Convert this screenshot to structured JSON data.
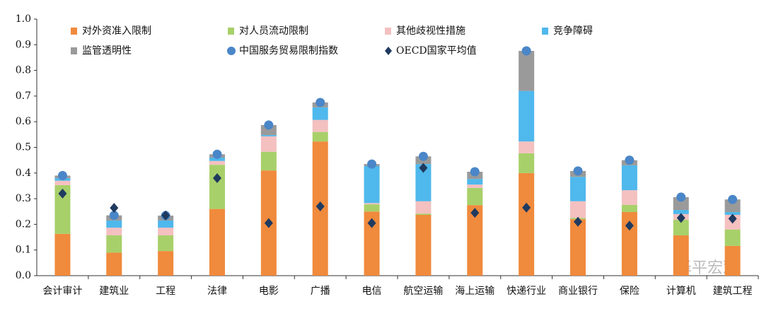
{
  "chart_data": {
    "type": "stacked_bar",
    "categories": [
      "会计审计",
      "建筑业",
      "工程",
      "法律",
      "电影",
      "广播",
      "电信",
      "航空运输",
      "海上运输",
      "快递行业",
      "商业银行",
      "保险",
      "计算机",
      "建筑工程"
    ],
    "series": [
      {
        "name": "对外资准入限制",
        "color": "#f08a3c",
        "values": [
          0.163,
          0.09,
          0.096,
          0.26,
          0.41,
          0.523,
          0.25,
          0.237,
          0.275,
          0.4,
          0.22,
          0.248,
          0.157,
          0.116
        ]
      },
      {
        "name": "对人员流动限制",
        "color": "#a8d06a",
        "values": [
          0.19,
          0.067,
          0.061,
          0.172,
          0.073,
          0.037,
          0.028,
          0.005,
          0.067,
          0.077,
          0.005,
          0.028,
          0.061,
          0.064
        ]
      },
      {
        "name": "其他歧视性措施",
        "color": "#f4c0c0",
        "values": [
          0.017,
          0.03,
          0.03,
          0.015,
          0.06,
          0.047,
          0.005,
          0.048,
          0.013,
          0.046,
          0.065,
          0.057,
          0.022,
          0.057
        ]
      },
      {
        "name": "竞争障碍",
        "color": "#4fb8ec",
        "values": [
          0.01,
          0.028,
          0.028,
          0.013,
          0.005,
          0.049,
          0.144,
          0.145,
          0.022,
          0.197,
          0.095,
          0.097,
          0.016,
          0.011
        ]
      },
      {
        "name": "监管透明性",
        "color": "#9a9a9a",
        "values": [
          0.01,
          0.02,
          0.019,
          0.013,
          0.039,
          0.019,
          0.008,
          0.03,
          0.028,
          0.156,
          0.023,
          0.02,
          0.05,
          0.049
        ]
      }
    ],
    "markers": [
      {
        "name": "中国服务贸易限制指数",
        "color": "#4a86c8",
        "shape": "circle",
        "values": [
          0.39,
          0.235,
          0.234,
          0.473,
          0.587,
          0.675,
          0.435,
          0.465,
          0.405,
          0.876,
          0.408,
          0.45,
          0.306,
          0.297
        ]
      },
      {
        "name": "OECD国家平均值",
        "color": "#1f3a5f",
        "shape": "diamond",
        "values": [
          0.32,
          0.264,
          0.235,
          0.38,
          0.205,
          0.27,
          0.205,
          0.42,
          0.245,
          0.265,
          0.21,
          0.195,
          0.225,
          0.222
        ]
      }
    ],
    "ylim": [
      0,
      1.0
    ],
    "yticks": [
      {
        "value": 0,
        "label": "0.0"
      },
      {
        "value": 0.1,
        "label": "0.1"
      },
      {
        "value": 0.2,
        "label": "0.2"
      },
      {
        "value": 0.3,
        "label": "0.3"
      },
      {
        "value": 0.4,
        "label": "0.4"
      },
      {
        "value": 0.5,
        "label": "0.5"
      },
      {
        "value": 0.6,
        "label": "0.6"
      },
      {
        "value": 0.7,
        "label": "0.7"
      },
      {
        "value": 0.8,
        "label": "0.8"
      },
      {
        "value": 0.9,
        "label": "0.9"
      },
      {
        "value": 1.0,
        "label": "1.0"
      }
    ],
    "watermark": "泽平宏观"
  }
}
